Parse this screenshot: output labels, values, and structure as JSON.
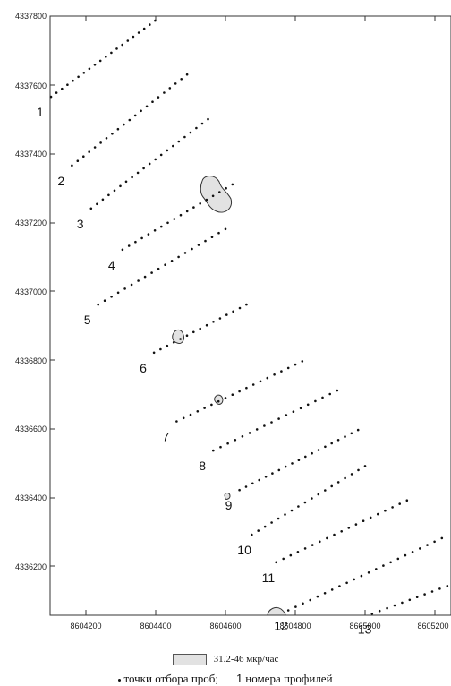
{
  "axes": {
    "y_ticks": [
      "4337800",
      "4337600",
      "4337400",
      "4337200",
      "4337000",
      "4336800",
      "4336600",
      "4336400",
      "4336200"
    ],
    "x_ticks": [
      "8604200",
      "8604400",
      "8604600",
      "8604800",
      "8605000",
      "8605200"
    ]
  },
  "profiles": [
    {
      "label": "1",
      "start": [
        8604100,
        4337565
      ],
      "end": [
        8604430,
        4337810
      ],
      "points": 22
    },
    {
      "label": "2",
      "start": [
        8604160,
        4337365
      ],
      "end": [
        8604490,
        4337630
      ],
      "points": 21
    },
    {
      "label": "3",
      "start": [
        8604215,
        4337240
      ],
      "end": [
        8604550,
        4337500
      ],
      "points": 21
    },
    {
      "label": "4",
      "start": [
        8604305,
        4337120
      ],
      "end": [
        8604620,
        4337310
      ],
      "points": 18
    },
    {
      "label": "5",
      "start": [
        8604235,
        4336960
      ],
      "end": [
        8604600,
        4337180
      ],
      "points": 20
    },
    {
      "label": "6",
      "start": [
        8604395,
        4336820
      ],
      "end": [
        8604660,
        4336960
      ],
      "points": 15
    },
    {
      "label": "7",
      "start": [
        8604460,
        4336620
      ],
      "end": [
        8604820,
        4336795
      ],
      "points": 19
    },
    {
      "label": "8",
      "start": [
        8604565,
        4336535
      ],
      "end": [
        8604920,
        4336710
      ],
      "points": 18
    },
    {
      "label": "9",
      "start": [
        8604640,
        4336420
      ],
      "end": [
        8604980,
        4336595
      ],
      "points": 19
    },
    {
      "label": "10",
      "start": [
        8604675,
        4336290
      ],
      "end": [
        8605000,
        4336490
      ],
      "points": 18
    },
    {
      "label": "11",
      "start": [
        8604745,
        4336210
      ],
      "end": [
        8605120,
        4336390
      ],
      "points": 19
    },
    {
      "label": "12",
      "start": [
        8604780,
        4336070
      ],
      "end": [
        8605220,
        4336280
      ],
      "points": 22
    },
    {
      "label": "13",
      "start": [
        8605020,
        4336060
      ],
      "end": [
        8605300,
        4336165
      ],
      "points": 14
    }
  ],
  "legend": {
    "anomaly_label": "31.2-46 мкр/час",
    "sample_points_label": "точки отбора проб;",
    "profile_num_example": "1",
    "profile_numbers_label": "номера профилей",
    "anomaly_fill": "#e2e2e2"
  }
}
